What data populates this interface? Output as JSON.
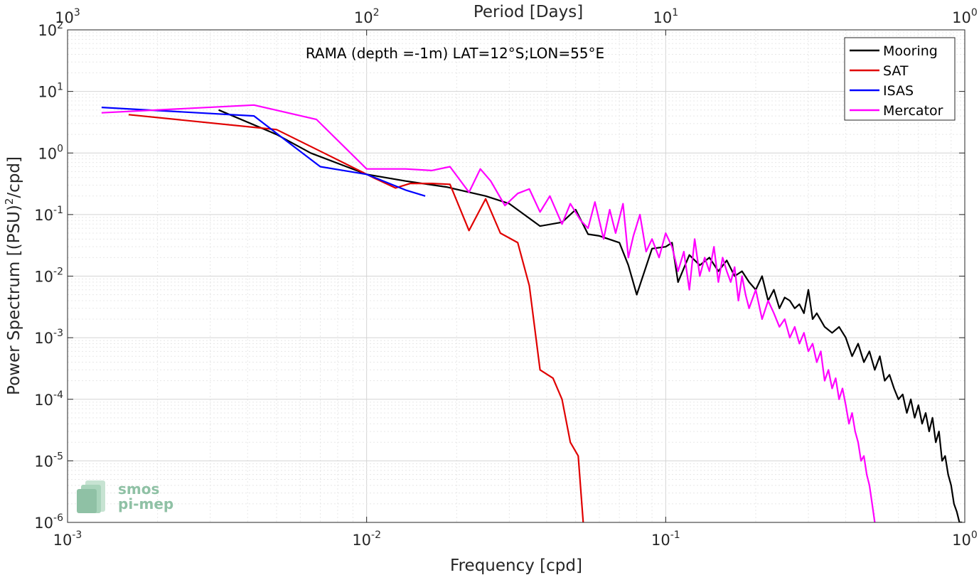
{
  "chart_data": {
    "type": "line",
    "title": "RAMA (depth =-1m) LAT=12°S;LON=55°E",
    "xlabel": "Frequency [cpd]",
    "ylabel": "Power Spectrum [(PSU)",
    "ylabel_sup": "2",
    "ylabel_tail": "/cpd]",
    "top_xlabel": "Period [Days]",
    "x_scale": "log",
    "y_scale": "log",
    "xlim": [
      0.001,
      1
    ],
    "ylim": [
      1e-06,
      100
    ],
    "grid": true,
    "minor_grid": true,
    "legend_position": "top-right",
    "x_ticks": [
      {
        "base": "10",
        "exp": "-3"
      },
      {
        "base": "10",
        "exp": "-2"
      },
      {
        "base": "10",
        "exp": "-1"
      },
      {
        "base": "10",
        "exp": "0"
      }
    ],
    "y_ticks": [
      {
        "base": "10",
        "exp": "-6"
      },
      {
        "base": "10",
        "exp": "-5"
      },
      {
        "base": "10",
        "exp": "-4"
      },
      {
        "base": "10",
        "exp": "-3"
      },
      {
        "base": "10",
        "exp": "-2"
      },
      {
        "base": "10",
        "exp": "-1"
      },
      {
        "base": "10",
        "exp": "0"
      },
      {
        "base": "10",
        "exp": "1"
      },
      {
        "base": "10",
        "exp": "2"
      }
    ],
    "top_ticks": [
      {
        "base": "10",
        "exp": "3"
      },
      {
        "base": "10",
        "exp": "2"
      },
      {
        "base": "10",
        "exp": "1"
      },
      {
        "base": "10",
        "exp": "0"
      }
    ],
    "series": [
      {
        "name": "Mooring",
        "color": "#000000",
        "x": [
          0.0032,
          0.005,
          0.0065,
          0.01,
          0.0135,
          0.0185,
          0.025,
          0.03,
          0.038,
          0.045,
          0.05,
          0.055,
          0.06,
          0.07,
          0.075,
          0.08,
          0.09,
          0.1,
          0.105,
          0.11,
          0.12,
          0.13,
          0.14,
          0.15,
          0.16,
          0.17,
          0.18,
          0.19,
          0.2,
          0.21,
          0.22,
          0.23,
          0.24,
          0.25,
          0.26,
          0.27,
          0.28,
          0.29,
          0.3,
          0.31,
          0.32,
          0.34,
          0.36,
          0.38,
          0.4,
          0.42,
          0.44,
          0.46,
          0.48,
          0.5,
          0.52,
          0.54,
          0.56,
          0.58,
          0.6,
          0.62,
          0.64,
          0.66,
          0.68,
          0.7,
          0.72,
          0.74,
          0.76,
          0.78,
          0.8,
          0.82,
          0.84,
          0.86,
          0.88,
          0.9,
          0.92,
          0.94,
          0.96,
          0.98
        ],
        "y": [
          5.0,
          2.0,
          1.0,
          0.45,
          0.35,
          0.28,
          0.2,
          0.15,
          0.065,
          0.075,
          0.12,
          0.048,
          0.045,
          0.035,
          0.015,
          0.005,
          0.028,
          0.03,
          0.035,
          0.008,
          0.022,
          0.015,
          0.02,
          0.012,
          0.018,
          0.01,
          0.012,
          0.008,
          0.006,
          0.01,
          0.004,
          0.006,
          0.003,
          0.0045,
          0.004,
          0.003,
          0.0035,
          0.0025,
          0.006,
          0.002,
          0.0025,
          0.0015,
          0.0012,
          0.0015,
          0.001,
          0.0005,
          0.0008,
          0.0004,
          0.0006,
          0.0003,
          0.0005,
          0.0002,
          0.00025,
          0.00015,
          0.0001,
          0.00012,
          6e-05,
          0.0001,
          5e-05,
          8e-05,
          4e-05,
          6e-05,
          3e-05,
          5e-05,
          2e-05,
          3e-05,
          1e-05,
          1.2e-05,
          6e-06,
          4e-06,
          2e-06,
          1.5e-06,
          1e-06,
          1e-06
        ]
      },
      {
        "name": "SAT",
        "color": "#e00000",
        "x": [
          0.0016,
          0.005,
          0.0072,
          0.0105,
          0.0125,
          0.014,
          0.0165,
          0.019,
          0.022,
          0.025,
          0.028,
          0.032,
          0.035,
          0.038,
          0.042,
          0.045,
          0.048,
          0.051,
          0.053
        ],
        "y": [
          4.2,
          2.4,
          1.0,
          0.4,
          0.27,
          0.32,
          0.32,
          0.31,
          0.055,
          0.18,
          0.05,
          0.035,
          0.007,
          0.0003,
          0.00022,
          0.0001,
          2e-05,
          1.2e-05,
          1e-06
        ]
      },
      {
        "name": "ISAS",
        "color": "#0000ff",
        "x": [
          0.0013,
          0.0042,
          0.0052,
          0.007,
          0.01,
          0.0135,
          0.0157
        ],
        "y": [
          5.5,
          4.0,
          1.8,
          0.6,
          0.45,
          0.25,
          0.2
        ]
      },
      {
        "name": "Mercator",
        "color": "#ff00ff",
        "x": [
          0.0013,
          0.0042,
          0.0068,
          0.01,
          0.0135,
          0.0165,
          0.019,
          0.022,
          0.024,
          0.026,
          0.029,
          0.032,
          0.035,
          0.038,
          0.041,
          0.045,
          0.048,
          0.052,
          0.055,
          0.058,
          0.062,
          0.065,
          0.068,
          0.072,
          0.075,
          0.078,
          0.082,
          0.086,
          0.09,
          0.095,
          0.1,
          0.105,
          0.11,
          0.115,
          0.12,
          0.125,
          0.13,
          0.135,
          0.14,
          0.145,
          0.15,
          0.155,
          0.16,
          0.165,
          0.17,
          0.175,
          0.18,
          0.185,
          0.19,
          0.2,
          0.21,
          0.22,
          0.23,
          0.24,
          0.25,
          0.26,
          0.27,
          0.28,
          0.29,
          0.3,
          0.31,
          0.32,
          0.33,
          0.34,
          0.35,
          0.36,
          0.37,
          0.38,
          0.39,
          0.4,
          0.41,
          0.42,
          0.43,
          0.44,
          0.45,
          0.46,
          0.47,
          0.48,
          0.49,
          0.5
        ],
        "y": [
          4.5,
          6.0,
          3.5,
          0.55,
          0.55,
          0.52,
          0.6,
          0.23,
          0.55,
          0.35,
          0.14,
          0.22,
          0.26,
          0.11,
          0.2,
          0.07,
          0.15,
          0.08,
          0.06,
          0.16,
          0.04,
          0.12,
          0.05,
          0.15,
          0.02,
          0.045,
          0.1,
          0.025,
          0.04,
          0.02,
          0.05,
          0.03,
          0.012,
          0.025,
          0.006,
          0.04,
          0.01,
          0.02,
          0.012,
          0.03,
          0.008,
          0.02,
          0.012,
          0.008,
          0.014,
          0.004,
          0.01,
          0.005,
          0.003,
          0.006,
          0.002,
          0.004,
          0.0025,
          0.0015,
          0.002,
          0.001,
          0.0015,
          0.0008,
          0.0012,
          0.0006,
          0.0008,
          0.0004,
          0.0006,
          0.0002,
          0.0003,
          0.00015,
          0.00022,
          0.0001,
          0.00015,
          8e-05,
          4e-05,
          6e-05,
          3e-05,
          2e-05,
          1e-05,
          1.2e-05,
          6e-06,
          4e-06,
          2e-06,
          1e-06
        ]
      }
    ]
  },
  "logo": {
    "line1": "smos",
    "line2": "pi-mep",
    "color": "#8fc1a5"
  }
}
